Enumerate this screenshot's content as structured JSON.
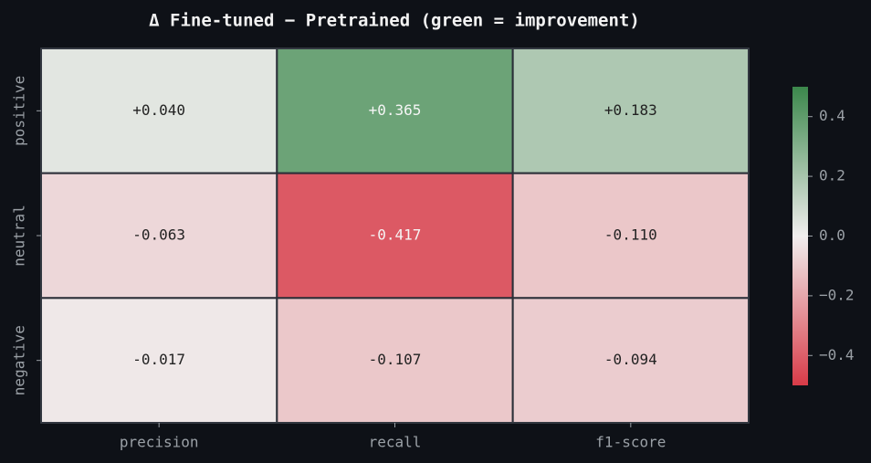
{
  "chart_data": {
    "type": "heatmap",
    "title": "Δ Fine-tuned − Pretrained (green = improvement)",
    "categories": [
      "precision",
      "recall",
      "f1-score"
    ],
    "y_categories": [
      "positive",
      "neutral",
      "negative"
    ],
    "values": [
      [
        0.04,
        0.365,
        0.183
      ],
      [
        -0.063,
        -0.417,
        -0.11
      ],
      [
        -0.017,
        -0.107,
        -0.094
      ]
    ],
    "value_labels": [
      [
        "+0.040",
        "+0.365",
        "+0.183"
      ],
      [
        "-0.063",
        "-0.417",
        "-0.110"
      ],
      [
        "-0.017",
        "-0.107",
        "-0.094"
      ]
    ],
    "colormap": [
      "#d83b48",
      "#f0eeee",
      "#3b874b"
    ],
    "zlim": [
      -0.5,
      0.5
    ],
    "zticks": [
      {
        "value": -0.4,
        "label": "−0.4"
      },
      {
        "value": -0.2,
        "label": "−0.2"
      },
      {
        "value": 0,
        "label": "0.0"
      },
      0.2,
      0.4
    ]
  }
}
